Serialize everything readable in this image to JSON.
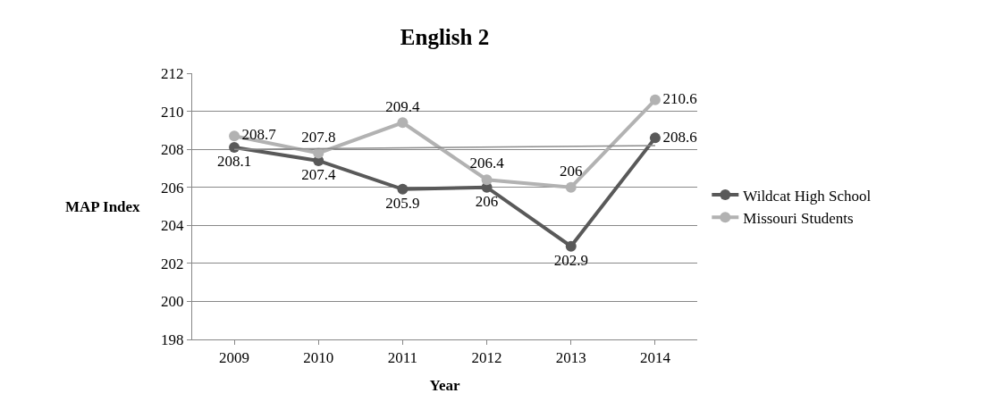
{
  "chart_data": {
    "type": "line",
    "title": "English 2",
    "xlabel": "Year",
    "ylabel": "MAP Index",
    "categories": [
      "2009",
      "2010",
      "2011",
      "2012",
      "2013",
      "2014"
    ],
    "series": [
      {
        "name": "Wildcat High School",
        "color": "#595959",
        "values": [
          208.1,
          207.4,
          205.9,
          206,
          202.9,
          208.6
        ],
        "value_labels": [
          "208.1",
          "207.4",
          "205.9",
          "206",
          "202.9",
          "208.6"
        ]
      },
      {
        "name": "Missouri Students",
        "color": "#b2b2b2",
        "values": [
          208.7,
          207.8,
          209.4,
          206.4,
          206,
          210.6
        ],
        "value_labels": [
          "208.7",
          "207.8",
          "209.4",
          "206.4",
          "206",
          "210.6"
        ]
      },
      {
        "type": "line",
        "color": "#8c8c8c",
        "values": [
          208.0,
          null,
          null,
          null,
          null,
          208.2
        ],
        "marker": "none"
      }
    ],
    "ylim": [
      198,
      212
    ],
    "yticks": [
      198,
      200,
      202,
      204,
      206,
      208,
      210,
      212
    ],
    "grid": "y",
    "legend": "right",
    "marker": "circle",
    "line_style": "solid"
  }
}
